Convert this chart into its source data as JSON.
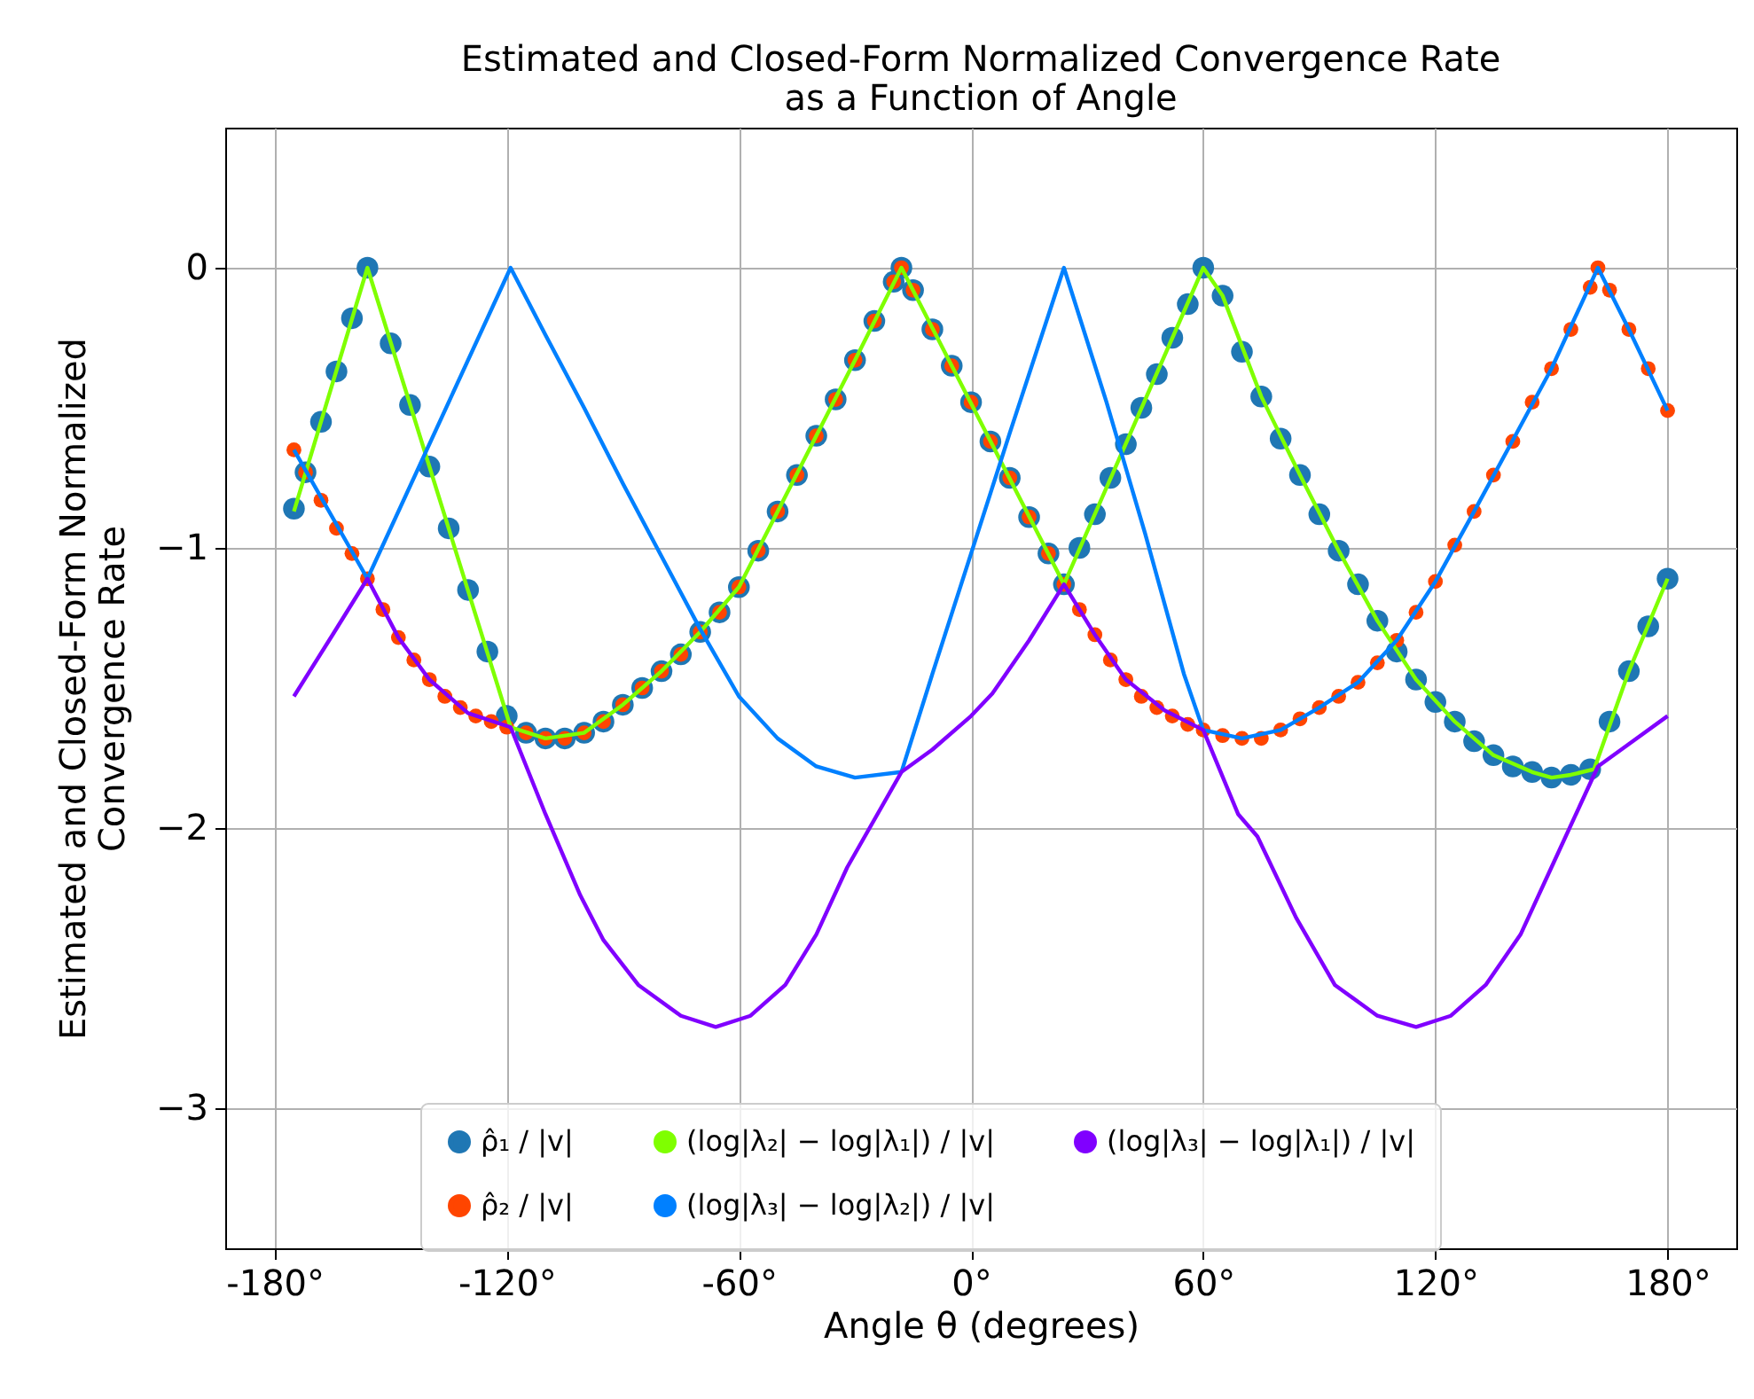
{
  "chart_data": {
    "type": "line",
    "title": "Estimated and Closed-Form Normalized Convergence Rate\nas a Function of Angle",
    "xlabel": "Angle θ (degrees)",
    "ylabel": "Estimated and Closed-Form Normalized\nConvergence Rate",
    "xlim": [
      -192.75,
      197.75
    ],
    "ylim": [
      -3.5,
      0.5
    ],
    "xticks": [
      {
        "value": -180,
        "label": "-180°"
      },
      {
        "value": -120,
        "label": "-120°"
      },
      {
        "value": -60,
        "label": "-60°"
      },
      {
        "value": 0,
        "label": "0°"
      },
      {
        "value": 60,
        "label": "60°"
      },
      {
        "value": 120,
        "label": "120°"
      },
      {
        "value": 180,
        "label": "180°"
      }
    ],
    "yticks": [
      {
        "value": -3,
        "label": "−3"
      },
      {
        "value": -2,
        "label": "−2"
      },
      {
        "value": -1,
        "label": "−1"
      },
      0
    ],
    "grid": true,
    "legend": "bottom",
    "series": [
      {
        "name": "ρ̂₁ / |v|",
        "type": "scatter",
        "color": "#1f77b4",
        "x": [
          -175,
          -172,
          -168,
          -164,
          -160,
          -156,
          -150,
          -145,
          -140,
          -135,
          -130,
          -125,
          -120,
          -115,
          -110,
          -105,
          -100,
          -95,
          -90,
          -85,
          -80,
          -75,
          -70,
          -65,
          -60,
          -55,
          -50,
          -45,
          -40,
          -35,
          -30,
          -25,
          -20,
          -18,
          -15,
          -10,
          -5,
          0,
          5,
          10,
          15,
          20,
          24,
          28,
          32,
          36,
          40,
          44,
          48,
          52,
          56,
          60,
          65,
          70,
          75,
          80,
          85,
          90,
          95,
          100,
          105,
          110,
          115,
          120,
          125,
          130,
          135,
          140,
          145,
          150,
          155,
          160,
          165,
          170,
          175,
          180
        ],
        "values": [
          -0.86,
          -0.73,
          -0.55,
          -0.37,
          -0.18,
          0,
          -0.27,
          -0.49,
          -0.71,
          -0.93,
          -1.15,
          -1.37,
          -1.6,
          -1.66,
          -1.68,
          -1.68,
          -1.66,
          -1.62,
          -1.56,
          -1.5,
          -1.44,
          -1.38,
          -1.3,
          -1.23,
          -1.14,
          -1.01,
          -0.87,
          -0.74,
          -0.6,
          -0.47,
          -0.33,
          -0.19,
          -0.05,
          0,
          -0.08,
          -0.22,
          -0.35,
          -0.48,
          -0.62,
          -0.75,
          -0.89,
          -1.02,
          -1.13,
          -1,
          -0.88,
          -0.75,
          -0.63,
          -0.5,
          -0.38,
          -0.25,
          -0.13,
          0,
          -0.1,
          -0.3,
          -0.46,
          -0.61,
          -0.74,
          -0.88,
          -1.01,
          -1.13,
          -1.26,
          -1.37,
          -1.47,
          -1.55,
          -1.62,
          -1.69,
          -1.74,
          -1.78,
          -1.8,
          -1.82,
          -1.81,
          -1.79,
          -1.62,
          -1.44,
          -1.28,
          -1.11
        ]
      },
      {
        "name": "ρ̂₂ / |v|",
        "type": "scatter",
        "color": "#ff4500",
        "x": [
          -175,
          -172,
          -168,
          -164,
          -160,
          -156,
          -152,
          -148,
          -144,
          -140,
          -136,
          -132,
          -128,
          -124,
          -120,
          -115,
          -110,
          -105,
          -100,
          -95,
          -90,
          -85,
          -80,
          -75,
          -70,
          -65,
          -60,
          -55,
          -50,
          -45,
          -40,
          -35,
          -30,
          -25,
          -20,
          -18,
          -15,
          -10,
          -5,
          0,
          5,
          10,
          15,
          20,
          24,
          28,
          32,
          36,
          40,
          44,
          48,
          52,
          56,
          60,
          65,
          70,
          75,
          80,
          85,
          90,
          95,
          100,
          105,
          110,
          115,
          120,
          125,
          130,
          135,
          140,
          145,
          150,
          155,
          160,
          162,
          165,
          170,
          175,
          180
        ],
        "values": [
          -0.65,
          -0.73,
          -0.83,
          -0.93,
          -1.02,
          -1.11,
          -1.22,
          -1.32,
          -1.4,
          -1.47,
          -1.53,
          -1.57,
          -1.6,
          -1.62,
          -1.64,
          -1.66,
          -1.68,
          -1.68,
          -1.66,
          -1.62,
          -1.56,
          -1.5,
          -1.44,
          -1.38,
          -1.3,
          -1.23,
          -1.14,
          -1.01,
          -0.87,
          -0.74,
          -0.6,
          -0.47,
          -0.33,
          -0.19,
          -0.05,
          0,
          -0.08,
          -0.22,
          -0.35,
          -0.48,
          -0.62,
          -0.75,
          -0.89,
          -1.02,
          -1.13,
          -1.22,
          -1.31,
          -1.4,
          -1.47,
          -1.53,
          -1.57,
          -1.6,
          -1.63,
          -1.65,
          -1.67,
          -1.68,
          -1.68,
          -1.65,
          -1.61,
          -1.57,
          -1.53,
          -1.48,
          -1.41,
          -1.33,
          -1.23,
          -1.12,
          -0.99,
          -0.87,
          -0.74,
          -0.62,
          -0.48,
          -0.36,
          -0.22,
          -0.07,
          0,
          -0.08,
          -0.22,
          -0.36,
          -0.51
        ]
      },
      {
        "name": "(log|λ₂| − log|λ₁|) / |v|",
        "color": "#7fff00",
        "x": [
          -175,
          -156,
          -119,
          -110,
          -100,
          -90,
          -80,
          -70,
          -60,
          -50,
          -40,
          -30,
          -18,
          24,
          60,
          65,
          75,
          85,
          95,
          105,
          115,
          125,
          135,
          145,
          150,
          155,
          161,
          170,
          180
        ],
        "values": [
          -0.87,
          0,
          -1.64,
          -1.68,
          -1.66,
          -1.56,
          -1.44,
          -1.3,
          -1.14,
          -0.87,
          -0.6,
          -0.33,
          0,
          -1.13,
          0,
          -0.1,
          -0.46,
          -0.74,
          -1.01,
          -1.26,
          -1.47,
          -1.62,
          -1.74,
          -1.8,
          -1.82,
          -1.81,
          -1.79,
          -1.44,
          -1.11
        ]
      },
      {
        "name": "(log|λ₃| − log|λ₂|) / |v|",
        "color": "#0080ff",
        "x": [
          -175,
          -156,
          -119,
          -110,
          -100,
          -90,
          -80,
          -70,
          -60,
          -50,
          -40,
          -30,
          -18,
          -10,
          0,
          10,
          24,
          35,
          45,
          55,
          60,
          70,
          80,
          90,
          100,
          110,
          120,
          130,
          141,
          150,
          162,
          170,
          180
        ],
        "values": [
          -0.65,
          -1.11,
          0,
          -0.24,
          -0.5,
          -0.77,
          -1.03,
          -1.29,
          -1.53,
          -1.68,
          -1.78,
          -1.82,
          -1.8,
          -1.45,
          -1.02,
          -0.59,
          0,
          -0.48,
          -0.95,
          -1.45,
          -1.65,
          -1.68,
          -1.65,
          -1.57,
          -1.48,
          -1.33,
          -1.12,
          -0.87,
          -0.59,
          -0.36,
          0,
          -0.22,
          -0.51
        ]
      },
      {
        "name": "(log|λ₃| − log|λ₁|) / |v|",
        "color": "#8000ff",
        "x": [
          -175,
          -165,
          -156,
          -148,
          -140,
          -130,
          -119,
          -110,
          -101,
          -95,
          -86,
          -75,
          -66,
          -57,
          -48,
          -40,
          -32,
          -18,
          -10,
          0,
          5.5,
          15,
          24,
          32,
          40,
          50,
          60,
          69,
          74,
          84,
          94,
          105,
          115,
          124,
          133,
          142,
          150,
          162,
          170,
          180
        ],
        "values": [
          -1.53,
          -1.31,
          -1.11,
          -1.32,
          -1.47,
          -1.59,
          -1.64,
          -1.95,
          -2.24,
          -2.4,
          -2.56,
          -2.67,
          -2.71,
          -2.67,
          -2.56,
          -2.38,
          -2.14,
          -1.8,
          -1.72,
          -1.6,
          -1.52,
          -1.33,
          -1.13,
          -1.31,
          -1.47,
          -1.58,
          -1.65,
          -1.95,
          -2.03,
          -2.32,
          -2.56,
          -2.67,
          -2.71,
          -2.67,
          -2.56,
          -2.38,
          -2.14,
          -1.78,
          -1.7,
          -1.6
        ]
      }
    ]
  }
}
